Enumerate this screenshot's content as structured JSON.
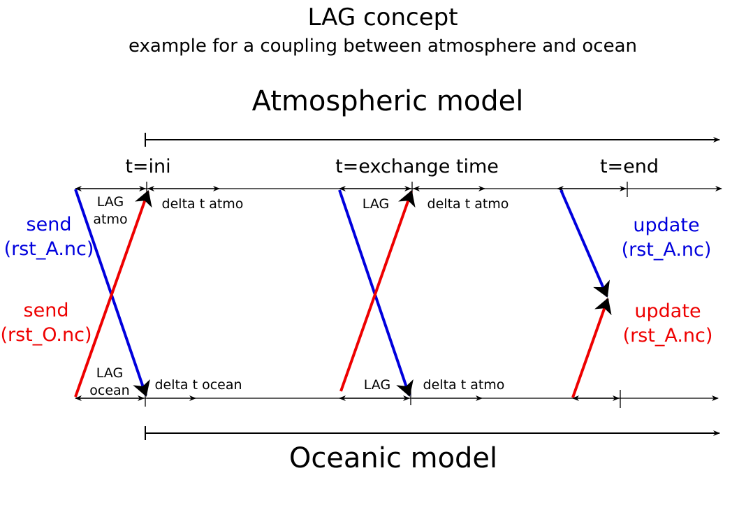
{
  "title": "LAG concept",
  "subtitle": "example for a coupling between atmosphere and ocean",
  "atmo_model_label": "Atmospheric  model",
  "ocean_model_label": "Oceanic model",
  "time_labels": {
    "ini": "t=ini",
    "exchange": "t=exchange time",
    "end": "t=end"
  },
  "atmo_row": {
    "lag_atmo_line1": "LAG",
    "lag_atmo_line2": "atmo",
    "delta_t_atmo_1": "delta t atmo",
    "lag_exchange": "LAG",
    "delta_t_atmo_2": "delta t atmo"
  },
  "ocean_row": {
    "lag_ocean_line1": "LAG",
    "lag_ocean_line2": "ocean",
    "delta_t_ocean": "delta t ocean",
    "lag_exchange": "LAG",
    "delta_t_atmo": "delta t atmo"
  },
  "left_labels": {
    "send_blue_1": "send",
    "send_blue_2": "(rst_A.nc)",
    "send_red_1": "send",
    "send_red_2": "(rst_O.nc)"
  },
  "right_labels": {
    "update_blue_1": "update",
    "update_blue_2": "(rst_A.nc)",
    "update_red_1": "update",
    "update_red_2": "(rst_A.nc)"
  },
  "colors": {
    "atmosphere_send": "#0000dd",
    "ocean_send": "#ee0000",
    "axis": "#000000"
  }
}
